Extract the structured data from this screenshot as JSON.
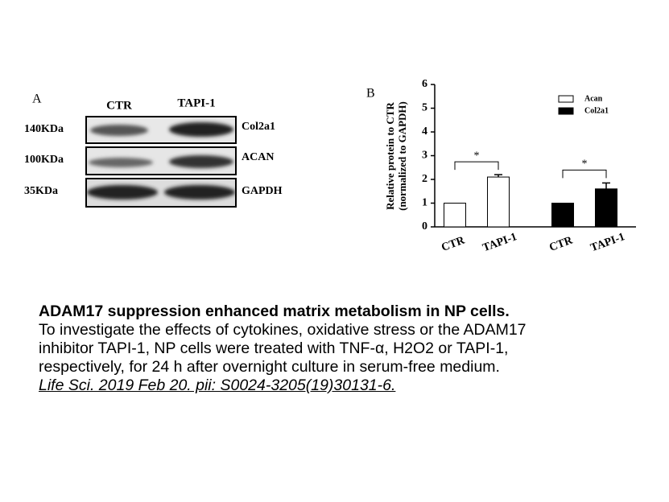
{
  "panel_a": {
    "label": "A",
    "columns": [
      "CTR",
      "TAPI-1"
    ],
    "rows": [
      {
        "weight": "140KDa",
        "protein": "Col2a1"
      },
      {
        "weight": "100KDa",
        "protein": "ACAN"
      },
      {
        "weight": "35KDa",
        "protein": "GAPDH"
      }
    ]
  },
  "chart_data": {
    "type": "bar",
    "panel_label": "B",
    "ylabel": [
      "Relative protein to CTR",
      "(normalized to GAPDH)"
    ],
    "categories": [
      "CTR",
      "TAPI-1"
    ],
    "series": [
      {
        "name": "Acan",
        "color": "#ffffff",
        "values": [
          1,
          2.1
        ],
        "errors": [
          null,
          0.1
        ]
      },
      {
        "name": "Col2a1",
        "color": "#000000",
        "values": [
          1,
          1.6
        ],
        "errors": [
          null,
          0.25
        ]
      }
    ],
    "annotations": [
      "*",
      "*"
    ],
    "ylim": [
      0,
      6
    ],
    "yticks": [
      0,
      1,
      2,
      3,
      4,
      5,
      6
    ],
    "legend": "upper right"
  },
  "caption": {
    "title": "ADAM17 suppression enhanced matrix metabolism in NP cells.",
    "lines": [
      "To investigate the effects of cytokines, oxidative stress or the ADAM17",
      "inhibitor TAPI-1, NP cells were treated with TNF-α, H2O2 or TAPI-1,",
      "respectively, for 24 h after overnight culture in serum-free medium."
    ],
    "citation": "Life Sci. 2019 Feb 20. pii: S0024-3205(19)30131-6."
  }
}
